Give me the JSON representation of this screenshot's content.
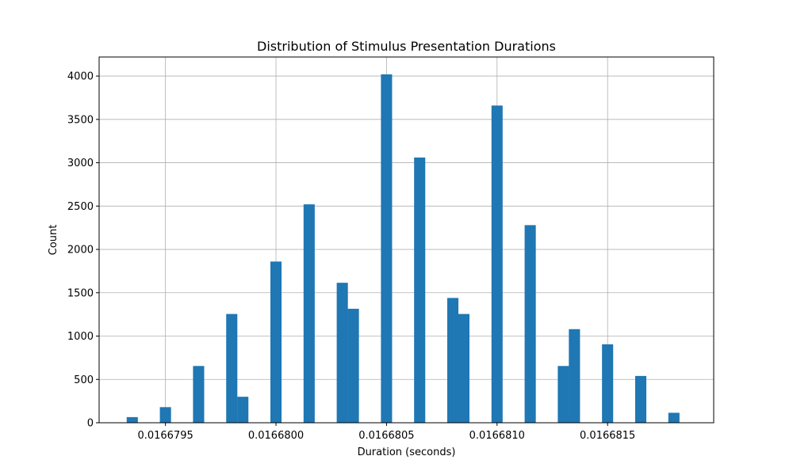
{
  "chart_data": {
    "type": "bar",
    "title": "Distribution of Stimulus Presentation Durations",
    "xlabel": "Duration (seconds)",
    "ylabel": "Count",
    "xlim": [
      0.0166792,
      0.01668198
    ],
    "ylim": [
      0,
      4220
    ],
    "grid": true,
    "bar_color": "#1f77b4",
    "bin_width": 5.05e-08,
    "bins": [
      {
        "x": 0.01667935,
        "count": 65
      },
      {
        "x": 0.0166795,
        "count": 180
      },
      {
        "x": 0.01667965,
        "count": 655
      },
      {
        "x": 0.0166798,
        "count": 1255
      },
      {
        "x": 0.01667985,
        "count": 300
      },
      {
        "x": 0.01668,
        "count": 1860
      },
      {
        "x": 0.01668015,
        "count": 2520
      },
      {
        "x": 0.0166803,
        "count": 1615
      },
      {
        "x": 0.01668035,
        "count": 1315
      },
      {
        "x": 0.0166805,
        "count": 4020
      },
      {
        "x": 0.01668065,
        "count": 3060
      },
      {
        "x": 0.0166808,
        "count": 1440
      },
      {
        "x": 0.01668085,
        "count": 1255
      },
      {
        "x": 0.016681,
        "count": 3660
      },
      {
        "x": 0.01668115,
        "count": 2280
      },
      {
        "x": 0.0166813,
        "count": 655
      },
      {
        "x": 0.01668135,
        "count": 1080
      },
      {
        "x": 0.0166815,
        "count": 905
      },
      {
        "x": 0.01668165,
        "count": 540
      },
      {
        "x": 0.0166818,
        "count": 115
      }
    ],
    "x_ticks": [
      {
        "value": 0.0166795,
        "label": "0.0166795"
      },
      {
        "value": 0.01668,
        "label": "0.0166800"
      },
      {
        "value": 0.0166805,
        "label": "0.0166805"
      },
      {
        "value": 0.016681,
        "label": "0.0166810"
      },
      {
        "value": 0.0166815,
        "label": "0.0166815"
      }
    ],
    "y_ticks": [
      {
        "value": 0,
        "label": "0"
      },
      {
        "value": 500,
        "label": "500"
      },
      {
        "value": 1000,
        "label": "1000"
      },
      {
        "value": 1500,
        "label": "1500"
      },
      {
        "value": 2000,
        "label": "2000"
      },
      {
        "value": 2500,
        "label": "2500"
      },
      {
        "value": 3000,
        "label": "3000"
      },
      {
        "value": 3500,
        "label": "3500"
      },
      {
        "value": 4000,
        "label": "4000"
      }
    ]
  }
}
